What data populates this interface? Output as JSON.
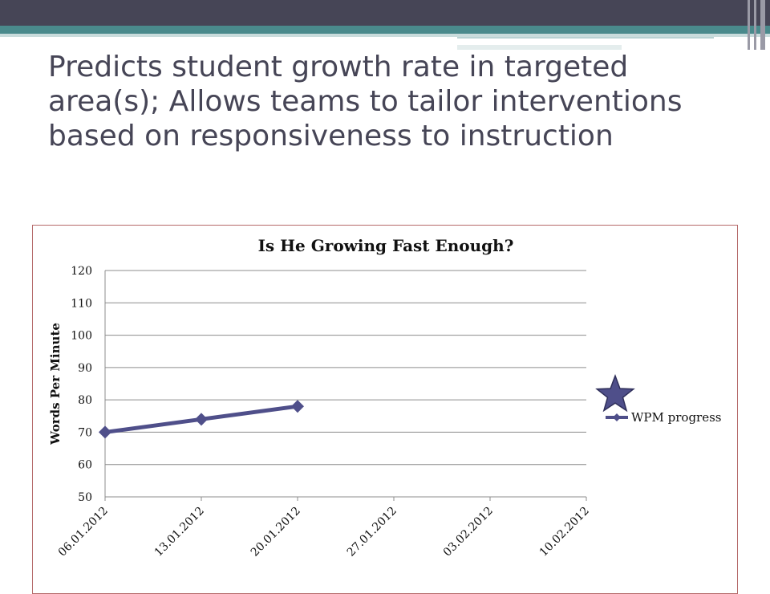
{
  "slide": {
    "title": "Predicts student growth rate in targeted area(s); Allows teams to tailor interventions based on responsiveness to instruction"
  },
  "chart_data": {
    "type": "line",
    "title": "Is He Growing Fast Enough?",
    "xlabel": "",
    "ylabel": "Words Per Minute",
    "categories": [
      "06.01.2012",
      "13.01.2012",
      "20.01.2012",
      "27.01.2012",
      "03.02.2012",
      "10.02.2012"
    ],
    "series": [
      {
        "name": "WPM progress",
        "values": [
          70,
          74,
          78,
          null,
          null,
          null
        ],
        "color": "#4f4f8a"
      }
    ],
    "ylim": [
      50,
      120
    ],
    "yticks": [
      50,
      60,
      70,
      80,
      90,
      100,
      110,
      120
    ],
    "grid": true,
    "legend_position": "right",
    "goal_marker": {
      "shape": "star",
      "category_position": 5.3,
      "value": 81.5,
      "color": "#4f4f8a"
    }
  }
}
